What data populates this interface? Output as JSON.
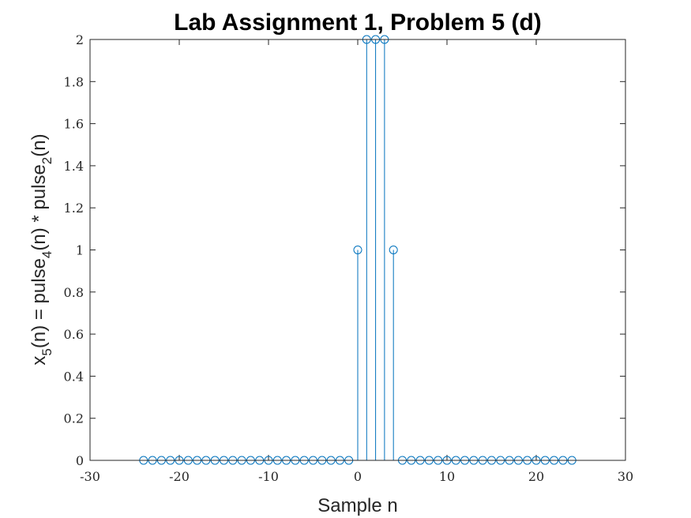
{
  "chart_data": {
    "type": "stem",
    "title": "Lab Assignment 1, Problem 5 (d)",
    "xlabel": "Sample n",
    "ylabel": {
      "text_x": "x",
      "sub_5": "5",
      "mid_1": "(n) = pulse",
      "sub_4": "4",
      "mid_2": "(n) * pulse",
      "sub_2": "2",
      "tail": "(n)"
    },
    "xlim": [
      -30,
      30
    ],
    "ylim": [
      0,
      2
    ],
    "xticks": [
      -30,
      -20,
      -10,
      0,
      10,
      20,
      30
    ],
    "yticks": [
      0,
      0.2,
      0.4,
      0.6,
      0.8,
      1,
      1.2,
      1.4,
      1.6,
      1.8,
      2
    ],
    "xtick_labels": [
      "-30",
      "-20",
      "-10",
      "0",
      "10",
      "20",
      "30"
    ],
    "ytick_labels": [
      "0",
      "0.2",
      "0.4",
      "0.6",
      "0.8",
      "1",
      "1.2",
      "1.4",
      "1.6",
      "1.8",
      "2"
    ],
    "color": "#0072BD",
    "x": [
      -24,
      -23,
      -22,
      -21,
      -20,
      -19,
      -18,
      -17,
      -16,
      -15,
      -14,
      -13,
      -12,
      -11,
      -10,
      -9,
      -8,
      -7,
      -6,
      -5,
      -4,
      -3,
      -2,
      -1,
      0,
      1,
      2,
      3,
      4,
      5,
      6,
      7,
      8,
      9,
      10,
      11,
      12,
      13,
      14,
      15,
      16,
      17,
      18,
      19,
      20,
      21,
      22,
      23,
      24
    ],
    "y": [
      0,
      0,
      0,
      0,
      0,
      0,
      0,
      0,
      0,
      0,
      0,
      0,
      0,
      0,
      0,
      0,
      0,
      0,
      0,
      0,
      0,
      0,
      0,
      0,
      1,
      2,
      2,
      2,
      1,
      0,
      0,
      0,
      0,
      0,
      0,
      0,
      0,
      0,
      0,
      0,
      0,
      0,
      0,
      0,
      0,
      0,
      0,
      0,
      0
    ]
  }
}
